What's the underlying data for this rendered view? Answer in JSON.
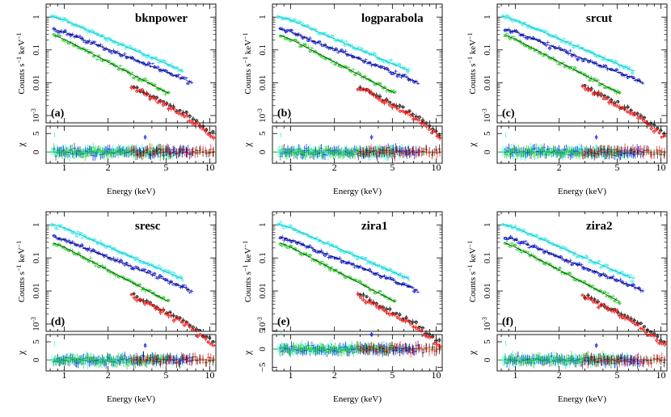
{
  "figure": {
    "xlabel": "Energy (keV)",
    "spec_ylabel_main": "Counts s",
    "spec_ylabel_sup1": "−1",
    "spec_ylabel_mid": " keV",
    "spec_ylabel_sup2": "−1",
    "resid_ylabel": "χ"
  },
  "chart_data": [
    {
      "panel": "(a)",
      "model": "bknpower",
      "type": "scatter",
      "xscale": "log",
      "yscale": "log",
      "xlim": [
        0.75,
        11
      ],
      "ylim": [
        0.0006,
        2.5
      ],
      "xticks": [
        "1",
        "2",
        "5",
        "10"
      ],
      "yticks": [
        "1",
        "0.1",
        "0.01",
        "10-3"
      ],
      "resid_ylim": [
        -3,
        7
      ],
      "resid_yticks": [
        "5",
        "0"
      ],
      "series": [
        {
          "color": "#33f0f0"
        },
        {
          "color": "#0a14e6"
        },
        {
          "color": "#1fd21f"
        },
        {
          "color": "#111111"
        },
        {
          "color": "#ee1111"
        }
      ]
    },
    {
      "panel": "(b)",
      "model": "logparabola",
      "type": "scatter",
      "xscale": "log",
      "yscale": "log",
      "xlim": [
        0.75,
        11
      ],
      "ylim": [
        0.0006,
        2.5
      ],
      "xticks": [
        "1",
        "2",
        "5",
        "10"
      ],
      "yticks": [
        "1",
        "0.1",
        "0.01",
        "10-3"
      ],
      "resid_ylim": [
        -3,
        7
      ],
      "resid_yticks": [
        "5",
        "0"
      ],
      "series": [
        {
          "color": "#33f0f0"
        },
        {
          "color": "#0a14e6"
        },
        {
          "color": "#1fd21f"
        },
        {
          "color": "#111111"
        },
        {
          "color": "#ee1111"
        }
      ]
    },
    {
      "panel": "(c)",
      "model": "srcut",
      "type": "scatter",
      "xscale": "log",
      "yscale": "log",
      "xlim": [
        0.75,
        11
      ],
      "ylim": [
        0.0006,
        2.5
      ],
      "xticks": [
        "1",
        "2",
        "5",
        "10"
      ],
      "yticks": [
        "1",
        "0.1",
        "0.01",
        "10-3"
      ],
      "resid_ylim": [
        -3,
        7
      ],
      "resid_yticks": [
        "5",
        "0"
      ],
      "series": [
        {
          "color": "#33f0f0"
        },
        {
          "color": "#0a14e6"
        },
        {
          "color": "#1fd21f"
        },
        {
          "color": "#111111"
        },
        {
          "color": "#ee1111"
        }
      ]
    },
    {
      "panel": "(d)",
      "model": "sresc",
      "type": "scatter",
      "xscale": "log",
      "yscale": "log",
      "xlim": [
        0.75,
        11
      ],
      "ylim": [
        0.0006,
        2.5
      ],
      "xticks": [
        "1",
        "2",
        "5",
        "10"
      ],
      "yticks": [
        "1",
        "0.1",
        "0.01",
        "10-3"
      ],
      "resid_ylim": [
        -3,
        7
      ],
      "resid_yticks": [
        "5",
        "0"
      ],
      "series": [
        {
          "color": "#33f0f0"
        },
        {
          "color": "#0a14e6"
        },
        {
          "color": "#1fd21f"
        },
        {
          "color": "#111111"
        },
        {
          "color": "#ee1111"
        }
      ]
    },
    {
      "panel": "(e)",
      "model": "zira1",
      "type": "scatter",
      "xscale": "log",
      "yscale": "log",
      "xlim": [
        0.75,
        11
      ],
      "ylim": [
        0.0006,
        2.5
      ],
      "xticks": [
        "1",
        "2",
        "5",
        "10"
      ],
      "yticks": [
        "1",
        "0.1",
        "0.01",
        "10-3"
      ],
      "resid_ylim": [
        -6,
        4
      ],
      "resid_yticks": [
        "5",
        "0",
        "−5"
      ],
      "series": [
        {
          "color": "#33f0f0"
        },
        {
          "color": "#0a14e6"
        },
        {
          "color": "#1fd21f"
        },
        {
          "color": "#111111"
        },
        {
          "color": "#ee1111"
        }
      ]
    },
    {
      "panel": "(f)",
      "model": "zira2",
      "type": "scatter",
      "xscale": "log",
      "yscale": "log",
      "xlim": [
        0.75,
        11
      ],
      "ylim": [
        0.0006,
        2.5
      ],
      "xticks": [
        "1",
        "2",
        "5",
        "10"
      ],
      "yticks": [
        "1",
        "0.1",
        "0.01",
        "10-3"
      ],
      "resid_ylim": [
        -3,
        7
      ],
      "resid_yticks": [
        "5",
        "0"
      ],
      "series": [
        {
          "color": "#33f0f0"
        },
        {
          "color": "#0a14e6"
        },
        {
          "color": "#1fd21f"
        },
        {
          "color": "#111111"
        },
        {
          "color": "#ee1111"
        }
      ]
    }
  ]
}
